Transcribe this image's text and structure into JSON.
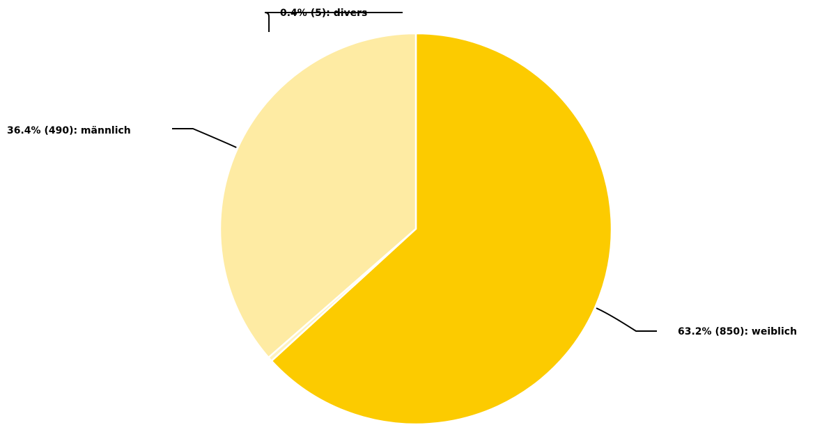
{
  "chart_data": {
    "type": "pie",
    "start_angle_deg": 0,
    "direction": "clockwise",
    "slices": [
      {
        "name": "weiblich",
        "value": 850,
        "percent": 63.2,
        "label": "63.2% (850): weiblich",
        "color": "#FCCB00"
      },
      {
        "name": "divers",
        "value": 5,
        "percent": 0.4,
        "label": "0.4% (5): divers",
        "color": "#FEF2C0"
      },
      {
        "name": "männlich",
        "value": 490,
        "percent": 36.4,
        "label": "36.4% (490): männlich",
        "color": "#FEEBA3"
      }
    ]
  }
}
